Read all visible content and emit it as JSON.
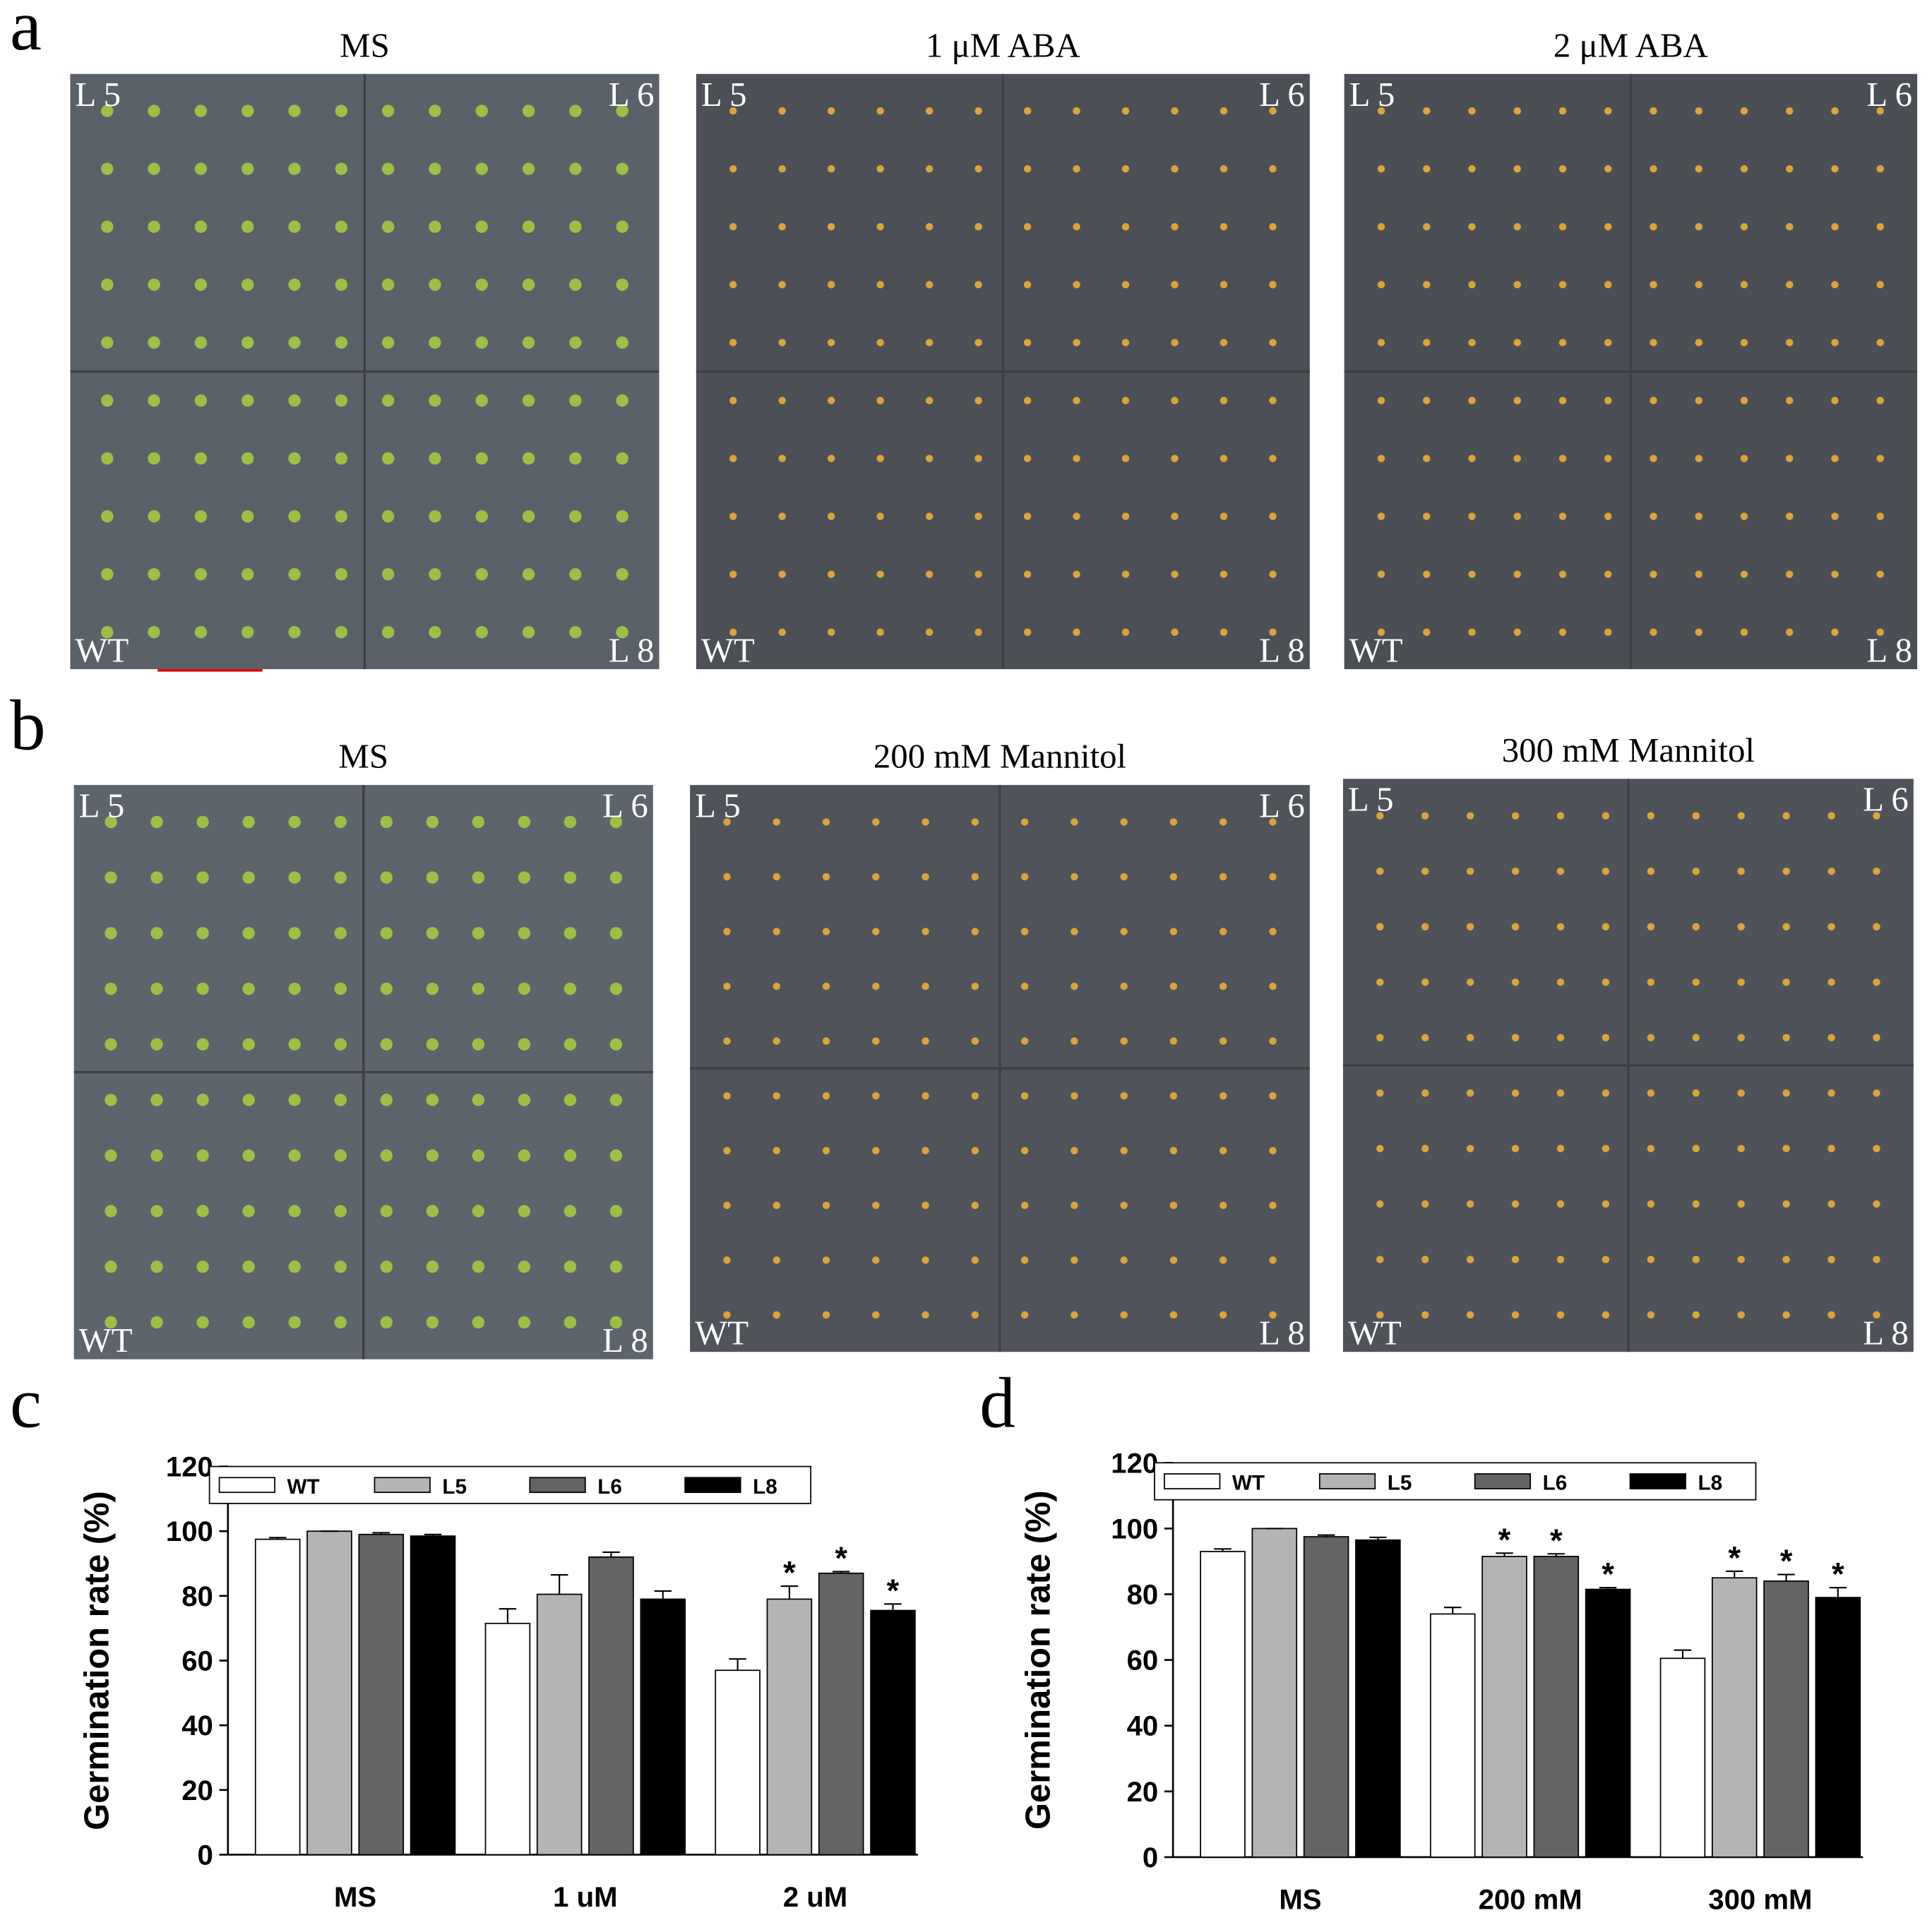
{
  "panel_labels": [
    "a",
    "b",
    "c",
    "d"
  ],
  "photos": [
    {
      "title": "MS",
      "corners": [
        "L 5",
        "L 6",
        "WT",
        "L 8"
      ]
    },
    {
      "title": "1 μM ABA",
      "corners": [
        "L 5",
        "L 6",
        "WT",
        "L 8"
      ]
    },
    {
      "title": "2 μM ABA",
      "corners": [
        "L 5",
        "L 6",
        "WT",
        "L 8"
      ]
    },
    {
      "title": "MS",
      "corners": [
        "L 5",
        "L 6",
        "WT",
        "L 8"
      ]
    },
    {
      "title": "200 mM Mannitol",
      "corners": [
        "L 5",
        "L 6",
        "WT",
        "L 8"
      ]
    },
    {
      "title": "300 mM Mannitol",
      "corners": [
        "L 5",
        "L 6",
        "WT",
        "L 8"
      ]
    }
  ],
  "chart_data": [
    {
      "type": "bar",
      "y_label": "Germination rate (%)",
      "categories": [
        "MS",
        "1 uM",
        "2 uM"
      ],
      "ylim": [
        0,
        120
      ],
      "yticks": [
        0,
        20,
        40,
        60,
        80,
        100,
        120
      ],
      "series": [
        {
          "name": "WT",
          "color": "#ffffff",
          "values": [
            97.5,
            71.5,
            57
          ],
          "errors": [
            0.5,
            4.5,
            3.5
          ],
          "annotations": [
            null,
            null,
            null
          ]
        },
        {
          "name": "L5",
          "color": "#b4b4b4",
          "values": [
            100,
            80.5,
            79
          ],
          "errors": [
            0,
            6,
            4
          ],
          "annotations": [
            null,
            null,
            "*"
          ]
        },
        {
          "name": "L6",
          "color": "#646464",
          "values": [
            99,
            92,
            87
          ],
          "errors": [
            0.5,
            1.5,
            0.5
          ],
          "annotations": [
            null,
            null,
            "*"
          ]
        },
        {
          "name": "L8",
          "color": "#000000",
          "values": [
            98.5,
            79,
            75.5
          ],
          "errors": [
            0.5,
            2.5,
            2
          ],
          "annotations": [
            null,
            null,
            "*"
          ]
        }
      ]
    },
    {
      "type": "bar",
      "y_label": "Germination rate (%)",
      "categories": [
        "MS",
        "200 mM",
        "300 mM"
      ],
      "ylim": [
        0,
        120
      ],
      "yticks": [
        0,
        20,
        40,
        60,
        80,
        100,
        120
      ],
      "series": [
        {
          "name": "WT",
          "color": "#ffffff",
          "values": [
            93,
            74,
            60.5
          ],
          "errors": [
            0.8,
            2,
            2.5
          ],
          "annotations": [
            null,
            null,
            null
          ]
        },
        {
          "name": "L5",
          "color": "#b4b4b4",
          "values": [
            100,
            91.5,
            85
          ],
          "errors": [
            0,
            1,
            2
          ],
          "annotations": [
            null,
            "*",
            "*"
          ]
        },
        {
          "name": "L6",
          "color": "#646464",
          "values": [
            97.5,
            91.5,
            84
          ],
          "errors": [
            0.5,
            0.8,
            2
          ],
          "annotations": [
            null,
            "*",
            "*"
          ]
        },
        {
          "name": "L8",
          "color": "#000000",
          "values": [
            96.5,
            81.5,
            79
          ],
          "errors": [
            0.8,
            0.5,
            3
          ],
          "annotations": [
            null,
            "*",
            "*"
          ]
        }
      ]
    }
  ]
}
